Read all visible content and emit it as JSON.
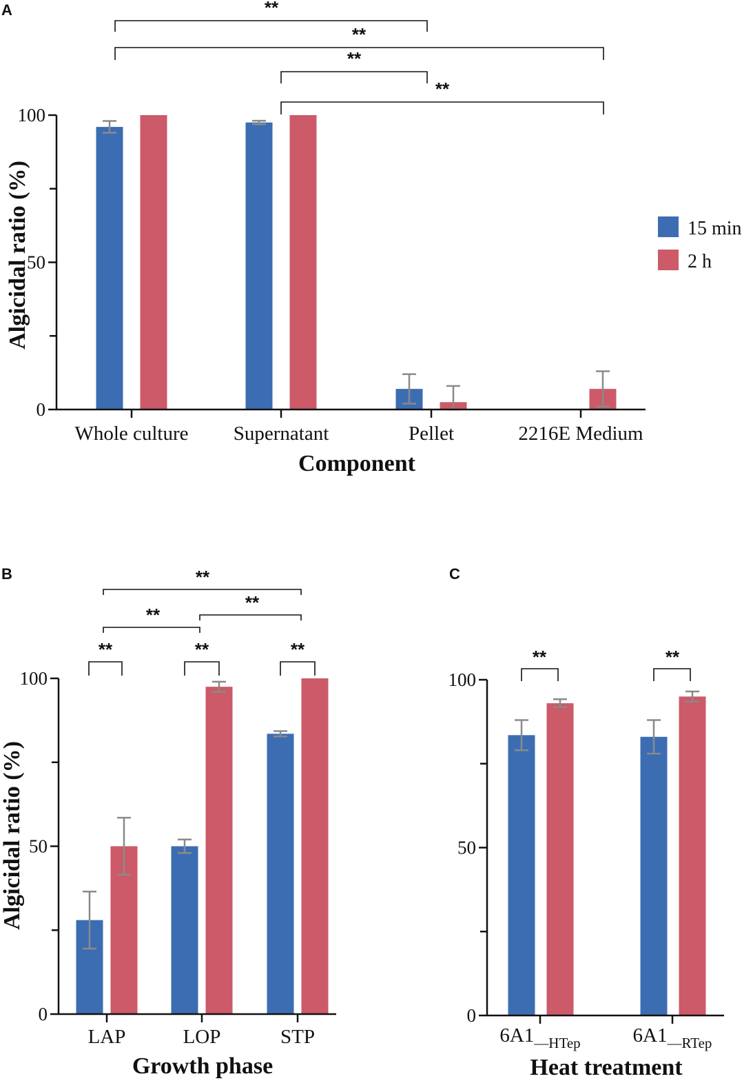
{
  "colors": {
    "series_15min": "#3c6db3",
    "series_2h": "#cc5a68",
    "error_bar": "#8a8a8a"
  },
  "legend": {
    "items": [
      "15 min",
      "2 h"
    ]
  },
  "chart_data": [
    {
      "panel": "A",
      "type": "bar",
      "title": "",
      "xlabel": "Component",
      "ylabel": "Algicidal  ratio (%)",
      "ylim": [
        0,
        100
      ],
      "yticks": [
        0,
        50,
        100
      ],
      "categories": [
        "Whole culture",
        "Supernatant",
        "Pellet",
        "2216E Medium"
      ],
      "series": [
        {
          "name": "15 min",
          "values": [
            96,
            97.5,
            7,
            0
          ],
          "errors": [
            2,
            0.6,
            5,
            0
          ]
        },
        {
          "name": "2 h",
          "values": [
            100,
            100,
            2.5,
            7
          ],
          "errors": [
            0,
            0,
            5.5,
            6
          ]
        }
      ],
      "significance": [
        {
          "label": "**",
          "from": "Whole culture",
          "to": "Pellet"
        },
        {
          "label": "**",
          "from": "Whole culture",
          "to": "2216E Medium"
        },
        {
          "label": "**",
          "from": "Supernatant",
          "to": "Pellet"
        },
        {
          "label": "**",
          "from": "Supernatant",
          "to": "2216E Medium"
        }
      ]
    },
    {
      "panel": "B",
      "type": "bar",
      "title": "",
      "xlabel": "Growth phase",
      "ylabel": "Algicidal  ratio (%)",
      "ylim": [
        0,
        100
      ],
      "yticks": [
        0,
        50,
        100
      ],
      "categories": [
        "LAP",
        "LOP",
        "STP"
      ],
      "series": [
        {
          "name": "15 min",
          "values": [
            28,
            50,
            83.5
          ],
          "errors": [
            8.5,
            2,
            0.8
          ]
        },
        {
          "name": "2 h",
          "values": [
            50,
            97.5,
            100
          ],
          "errors": [
            8.5,
            1.5,
            0
          ]
        }
      ],
      "significance": [
        {
          "label": "**",
          "from": "LAP",
          "to": "STP"
        },
        {
          "label": "**",
          "from": "LAP",
          "to": "LOP"
        },
        {
          "label": "**",
          "from": "LOP",
          "to": "STP"
        },
        {
          "label": "**",
          "within": "LAP"
        },
        {
          "label": "**",
          "within": "LOP"
        },
        {
          "label": "**",
          "within": "STP"
        }
      ]
    },
    {
      "panel": "C",
      "type": "bar",
      "title": "",
      "xlabel": "Heat treatment",
      "ylabel": "",
      "ylim": [
        0,
        100
      ],
      "yticks": [
        0,
        50,
        100
      ],
      "categories": [
        {
          "base": "6A1",
          "sub": "—HTep"
        },
        {
          "base": "6A1",
          "sub": "—RTep"
        }
      ],
      "series": [
        {
          "name": "15 min",
          "values": [
            83.5,
            83
          ],
          "errors": [
            4.5,
            5
          ]
        },
        {
          "name": "2 h",
          "values": [
            93,
            95
          ],
          "errors": [
            1.2,
            1.5
          ]
        }
      ],
      "significance": [
        {
          "label": "**",
          "within": 0
        },
        {
          "label": "**",
          "within": 1
        }
      ]
    }
  ]
}
